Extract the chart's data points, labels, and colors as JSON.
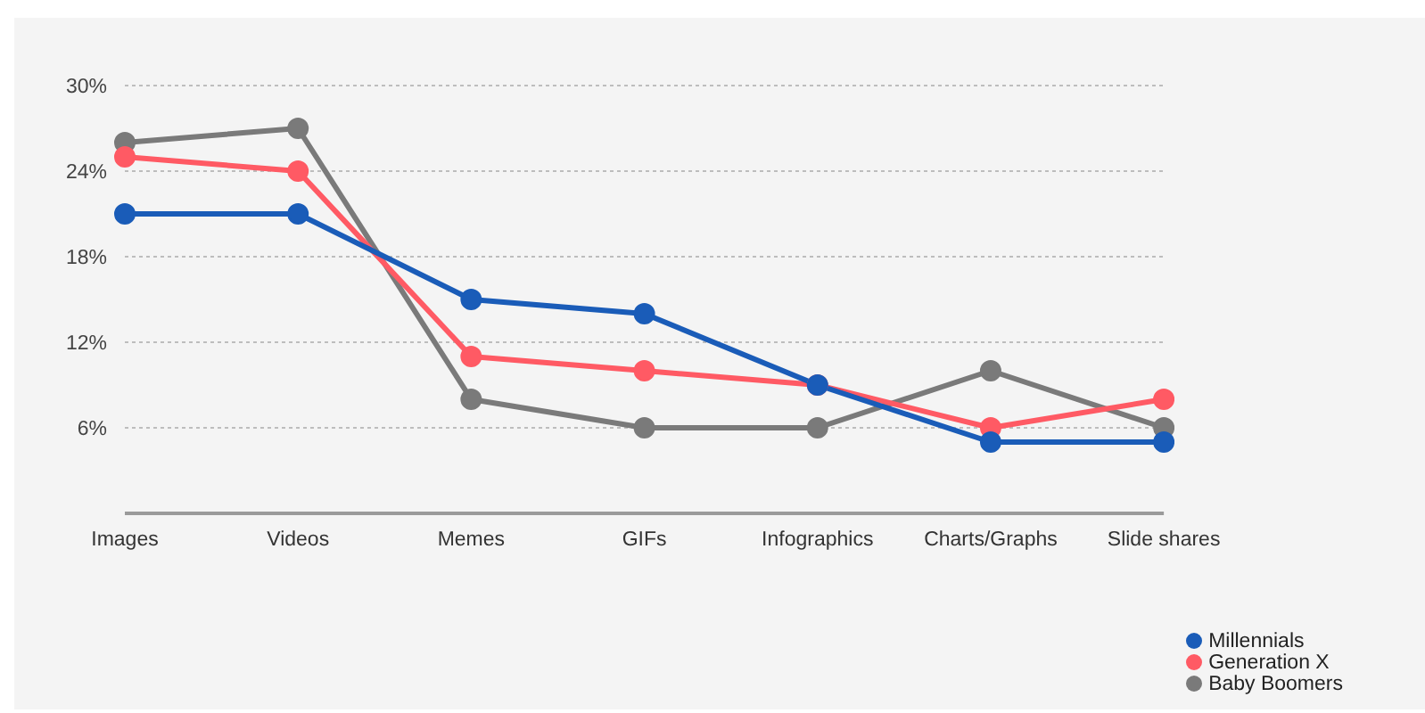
{
  "chart_data": {
    "type": "line",
    "categories": [
      "Images",
      "Videos",
      "Memes",
      "GIFs",
      "Infographics",
      "Charts/Graphs",
      "Slide shares"
    ],
    "series": [
      {
        "name": "Millennials",
        "color": "#1a5cb8",
        "values": [
          21,
          21,
          15,
          14,
          9,
          5,
          5
        ]
      },
      {
        "name": "Generation X",
        "color": "#ff5a64",
        "values": [
          25,
          24,
          11,
          10,
          9,
          6,
          8
        ]
      },
      {
        "name": "Baby Boomers",
        "color": "#7a7a7a",
        "values": [
          26,
          27,
          8,
          6,
          6,
          10,
          6
        ]
      }
    ],
    "ylim": [
      0,
      30
    ],
    "yticks": [
      {
        "value": 6,
        "label": "6%"
      },
      {
        "value": 12,
        "label": "12%"
      },
      {
        "value": 18,
        "label": "18%"
      },
      {
        "value": 24,
        "label": "24%"
      },
      {
        "value": 30,
        "label": "30%"
      }
    ],
    "grid": "y",
    "legend": "bottom right",
    "marker": "circle"
  }
}
